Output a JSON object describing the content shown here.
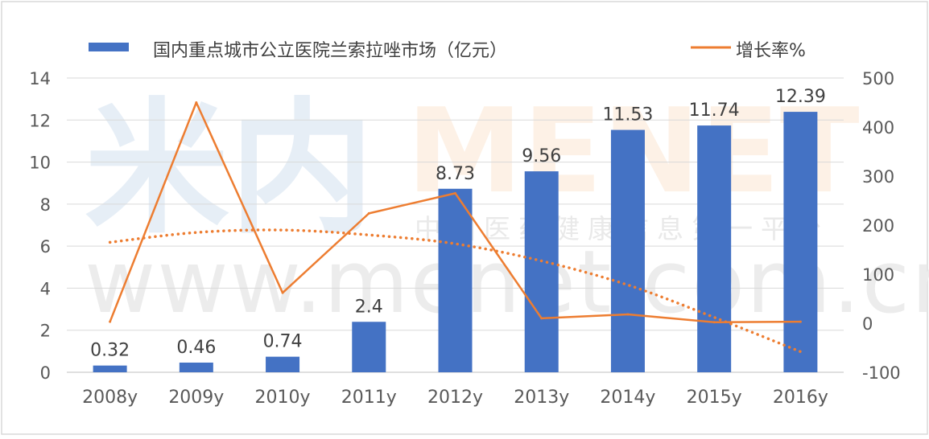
{
  "chart_data": {
    "type": "bar",
    "categories": [
      "2008y",
      "2009y",
      "2010y",
      "2011y",
      "2012y",
      "2013y",
      "2014y",
      "2015y",
      "2016y"
    ],
    "series": [
      {
        "name": "国内重点城市公立医院兰索拉唑市场（亿元）",
        "type": "bar",
        "axis": "left",
        "color": "#4472C4",
        "values": [
          0.32,
          0.46,
          0.74,
          2.4,
          8.73,
          9.56,
          11.53,
          11.74,
          12.39
        ]
      },
      {
        "name": "增长率%",
        "type": "line",
        "axis": "right",
        "color": "#ED7D31",
        "values": [
          3,
          450,
          62,
          224,
          265,
          10,
          18,
          2,
          3
        ]
      }
    ],
    "trendline": {
      "of_series": "增长率%",
      "kind": "polynomial",
      "style": "dotted",
      "color": "#ED7D31",
      "values": [
        165,
        185,
        190,
        180,
        162,
        127,
        78,
        12,
        -58
      ]
    },
    "data_labels": [
      "0.32",
      "0.46",
      "0.74",
      "2.4",
      "8.73",
      "9.56",
      "11.53",
      "11.74",
      "12.39"
    ],
    "left_axis": {
      "ylim": [
        0,
        14
      ],
      "ticks": [
        "0",
        "2",
        "4",
        "6",
        "8",
        "10",
        "12",
        "14"
      ]
    },
    "right_axis": {
      "ylim": [
        -100,
        500
      ],
      "ticks": [
        "-100",
        "0",
        "100",
        "200",
        "300",
        "400",
        "500"
      ]
    },
    "grid": true,
    "legend_position": "top"
  },
  "watermark": {
    "logo_cn": "米内",
    "logo_en": "MENET",
    "tagline": "中国医药健康信息第一平台",
    "url": "www.menet.com.cn"
  }
}
